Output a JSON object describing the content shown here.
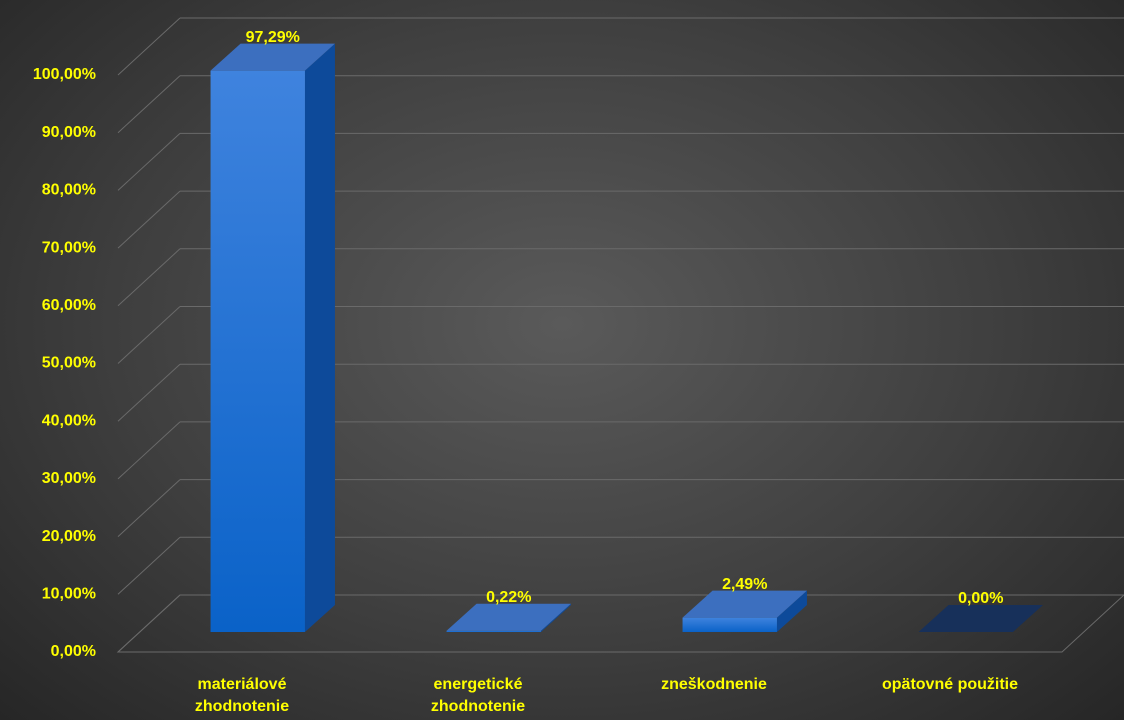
{
  "chart_data": {
    "type": "bar3d",
    "categories": [
      "materiálové zhodnotenie",
      "energetické zhodnotenie",
      "zneškodnenie",
      "opätovné použitie"
    ],
    "values": [
      97.29,
      0.22,
      2.49,
      0.0
    ],
    "value_labels": [
      "97,29%",
      "0,22%",
      "2,49%",
      "0,00%"
    ],
    "color": "#1a6fd6",
    "ylim": [
      0,
      100
    ],
    "yticks": [
      {
        "value": 0,
        "label": "0,00%"
      },
      {
        "value": 10,
        "label": "10,00%"
      },
      {
        "value": 20,
        "label": "20,00%"
      },
      {
        "value": 30,
        "label": "30,00%"
      },
      {
        "value": 40,
        "label": "40,00%"
      },
      {
        "value": 50,
        "label": "50,00%"
      },
      {
        "value": 60,
        "label": "60,00%"
      },
      {
        "value": 70,
        "label": "70,00%"
      },
      {
        "value": 80,
        "label": "80,00%"
      },
      {
        "value": 90,
        "label": "90,00%"
      },
      {
        "value": 100,
        "label": "100,00%"
      }
    ],
    "grid": true
  }
}
